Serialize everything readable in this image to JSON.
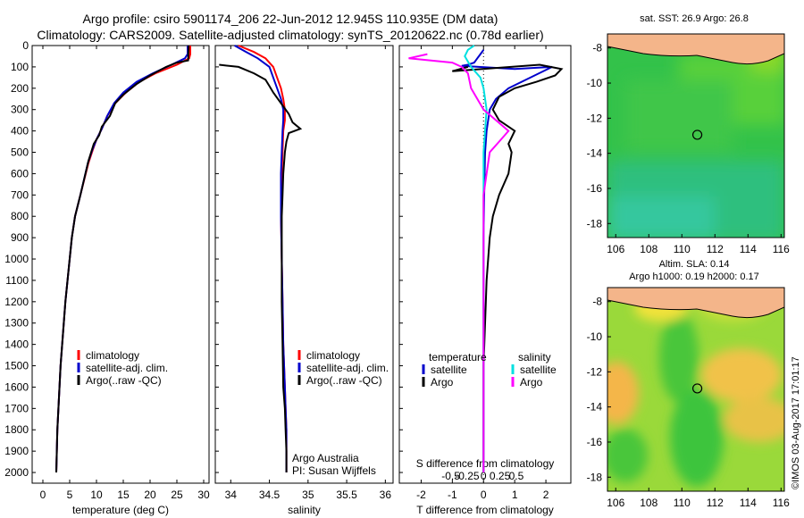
{
  "header": {
    "line1": "Argo profile: csiro 5901174_206 22-Jun-2012 12.945S 110.935E (DM data)",
    "line2": "Climatology: CARS2009. Satellite-adjusted climatology: synTS_20120622.nc (0.78d earlier)"
  },
  "maps": {
    "sst_title": "sat. SST: 26.9 Argo: 26.8",
    "sla_title1": "Altim. SLA: 0.14",
    "sla_title2": "Argo h1000: 0.19 h2000: 0.17",
    "argo_position": {
      "lon": 110.935,
      "lat": -12.945
    },
    "lon_ticks": [
      "106",
      "108",
      "110",
      "112",
      "114",
      "116"
    ],
    "lat_ticks": [
      "-8",
      "-10",
      "-12",
      "-14",
      "-16",
      "-18"
    ],
    "land_color": "#f4b58a",
    "lon_range": [
      105.5,
      116.2
    ],
    "lat_range": [
      -18.8,
      -7.2
    ]
  },
  "stamp": "©IMOS 03-Aug-2017 17:01:17",
  "colors": {
    "climatology": "#ff0000",
    "satellite": "#0000cc",
    "argo": "#000000",
    "sat_s": "#00e0e0",
    "argo_s": "#ff00ff"
  },
  "chart_data": [
    {
      "type": "line",
      "xlabel": "temperature (deg C)",
      "ylabel": "",
      "xlim": [
        -2,
        31
      ],
      "ylim": [
        2050,
        0
      ],
      "xticks": [
        "0",
        "5",
        "10",
        "15",
        "20",
        "25",
        "30"
      ],
      "yticks": [
        "0",
        "100",
        "200",
        "300",
        "400",
        "500",
        "600",
        "700",
        "800",
        "900",
        "1000",
        "1100",
        "1200",
        "1300",
        "1400",
        "1500",
        "1600",
        "1700",
        "1800",
        "1900",
        "2000"
      ],
      "legend": [
        "climatology",
        "satellite-adj. clim.",
        "Argo(..raw -QC)"
      ],
      "series": [
        {
          "name": "climatology",
          "x": [
            27.5,
            27.5,
            27.3,
            25,
            21,
            18,
            15.5,
            13.5,
            12,
            11,
            10,
            9.3,
            8.5,
            7,
            6,
            5.4,
            5,
            4.6,
            4.2,
            3.9,
            3.6,
            3.3,
            3.1,
            2.9,
            2.7,
            2.6,
            2.5
          ],
          "y": [
            0,
            40,
            60,
            90,
            130,
            170,
            220,
            270,
            330,
            390,
            440,
            490,
            550,
            700,
            800,
            900,
            1000,
            1100,
            1200,
            1300,
            1400,
            1500,
            1600,
            1700,
            1800,
            1900,
            2000
          ]
        },
        {
          "name": "satellite-adj. clim.",
          "x": [
            27,
            27,
            26.5,
            24,
            20.5,
            17.5,
            15,
            13.3,
            12,
            11,
            10,
            9.2,
            8.4,
            7,
            6,
            5.4,
            5,
            4.6,
            4.2,
            3.9,
            3.6,
            3.3,
            3.1,
            2.9,
            2.7,
            2.6,
            2.5
          ],
          "y": [
            0,
            40,
            60,
            90,
            130,
            170,
            220,
            270,
            330,
            390,
            440,
            490,
            550,
            700,
            800,
            900,
            1000,
            1100,
            1200,
            1300,
            1400,
            1500,
            1600,
            1700,
            1800,
            1900,
            2000
          ]
        },
        {
          "name": "Argo(..raw -QC)",
          "x": [
            27.2,
            27.1,
            25,
            23,
            20,
            17.5,
            15,
            13.5,
            12.5,
            11,
            10.5,
            9.5,
            8.5,
            7,
            6,
            5.4,
            5,
            4.6,
            4.2,
            3.9,
            3.6,
            3.3,
            3.1,
            2.9,
            2.7,
            2.6,
            2.5
          ],
          "y": [
            0,
            70,
            80,
            100,
            140,
            180,
            230,
            270,
            330,
            380,
            420,
            460,
            540,
            700,
            800,
            900,
            1000,
            1100,
            1200,
            1300,
            1400,
            1500,
            1600,
            1700,
            1800,
            1900,
            2000
          ]
        }
      ]
    },
    {
      "type": "line",
      "xlabel": "salinity",
      "xlim": [
        33.8,
        36.1
      ],
      "ylim": [
        2050,
        0
      ],
      "xticks": [
        "34",
        "34.5",
        "35",
        "35.5",
        "36"
      ],
      "legend": [
        "climatology",
        "satellite-adj. clim.",
        "Argo(..raw -QC)"
      ],
      "annotations": [
        "Argo Australia",
        "PI: Susan Wijffels"
      ],
      "series": [
        {
          "name": "climatology",
          "x": [
            34.1,
            34.3,
            34.45,
            34.55,
            34.6,
            34.65,
            34.68,
            34.7,
            34.7,
            34.68,
            34.67,
            34.66,
            34.65,
            34.65,
            34.66,
            34.67,
            34.68,
            34.69,
            34.7,
            34.71,
            34.72,
            34.72,
            34.72
          ],
          "y": [
            0,
            30,
            60,
            100,
            150,
            200,
            250,
            300,
            350,
            400,
            500,
            600,
            700,
            800,
            1000,
            1200,
            1400,
            1500,
            1600,
            1700,
            1800,
            1900,
            2000
          ]
        },
        {
          "name": "satellite-adj. clim.",
          "x": [
            34.05,
            34.2,
            34.35,
            34.5,
            34.55,
            34.6,
            34.65,
            34.68,
            34.68,
            34.67,
            34.66,
            34.65,
            34.65,
            34.65,
            34.66,
            34.67,
            34.68,
            34.69,
            34.7,
            34.71,
            34.72,
            34.72,
            34.72
          ],
          "y": [
            0,
            30,
            60,
            100,
            150,
            200,
            250,
            300,
            350,
            400,
            500,
            600,
            700,
            800,
            1000,
            1200,
            1400,
            1500,
            1600,
            1700,
            1800,
            1900,
            2000
          ]
        },
        {
          "name": "Argo(..raw -QC)",
          "x": [
            33.85,
            34.1,
            34.3,
            34.45,
            34.5,
            34.55,
            34.65,
            34.75,
            34.8,
            34.9,
            34.75,
            34.72,
            34.7,
            34.68,
            34.67,
            34.66,
            34.66,
            34.66,
            34.67,
            34.68,
            34.7,
            34.71,
            34.72,
            34.72
          ],
          "y": [
            90,
            100,
            130,
            160,
            190,
            220,
            270,
            320,
            360,
            390,
            410,
            450,
            500,
            600,
            700,
            800,
            1000,
            1200,
            1400,
            1600,
            1700,
            1800,
            1900,
            2000
          ]
        }
      ]
    },
    {
      "type": "line",
      "xlabel": "T difference from climatology",
      "xlabel_top": "S difference from climatology",
      "xlim": [
        -2.7,
        2.8
      ],
      "ylim": [
        2050,
        0
      ],
      "xticks": [
        "-2",
        "-1",
        "0",
        "1",
        "2"
      ],
      "xticks_top": [
        "-0.5",
        "-0.25",
        "0",
        "0.25",
        "0.5"
      ],
      "legend": [
        "temperature",
        "satellite",
        "Argo",
        "salinity",
        "satellite",
        "Argo"
      ],
      "series": [
        {
          "name": "satellite (T)",
          "x": [
            0,
            -0.1,
            -0.2,
            -0.3,
            -0.5,
            -0.7,
            1,
            2.2,
            1.5,
            0.8,
            0.4,
            0.2,
            0.1,
            0.05,
            0.02,
            0,
            0,
            0,
            0,
            0,
            0
          ],
          "y": [
            20,
            40,
            60,
            80,
            90,
            95,
            110,
            100,
            150,
            200,
            250,
            300,
            400,
            500,
            700,
            900,
            1100,
            1300,
            1500,
            1700,
            2000
          ]
        },
        {
          "name": "Argo (T)",
          "x": [
            -0.5,
            -1,
            1.8,
            2.5,
            2.3,
            1.7,
            1,
            0.5,
            0.3,
            0.5,
            1,
            0.8,
            0.9,
            0.8,
            0.5,
            0.3,
            0.2,
            0.1,
            0.05,
            0,
            0,
            0,
            0
          ],
          "y": [
            100,
            120,
            90,
            110,
            140,
            170,
            200,
            240,
            300,
            350,
            400,
            460,
            500,
            600,
            700,
            800,
            900,
            1100,
            1300,
            1500,
            1700,
            1900,
            2000
          ]
        },
        {
          "name": "satellite (S)",
          "x": [
            -0.3,
            -0.5,
            -0.6,
            -0.4,
            -0.1,
            0,
            0.1,
            0.05,
            0,
            0,
            0,
            0,
            0,
            0,
            0,
            0,
            0
          ],
          "y": [
            0,
            20,
            50,
            100,
            150,
            200,
            300,
            400,
            500,
            700,
            900,
            1100,
            1300,
            1500,
            1700,
            1900,
            2000
          ]
        },
        {
          "name": "Argo (S)",
          "x": [
            -1.8,
            -2.4,
            -1,
            -0.7,
            -0.5,
            -0.4,
            0,
            0.8,
            0.5,
            0.2,
            0.1,
            0,
            0,
            0,
            0,
            0
          ],
          "y": [
            40,
            60,
            80,
            100,
            130,
            200,
            300,
            400,
            450,
            500,
            600,
            700,
            900,
            1200,
            1600,
            2000
          ]
        }
      ]
    }
  ]
}
